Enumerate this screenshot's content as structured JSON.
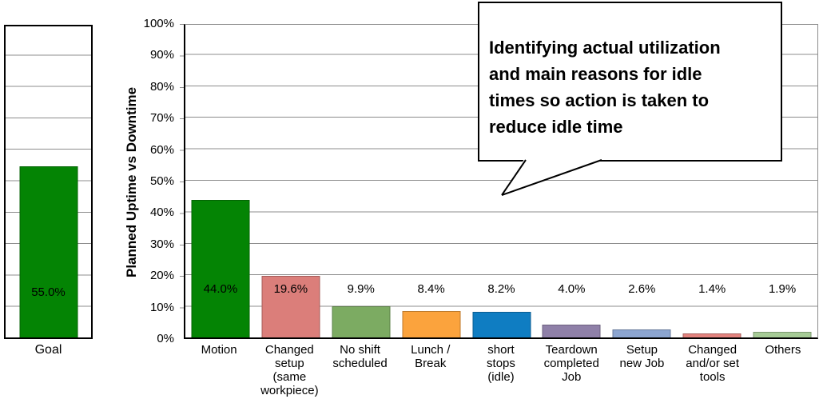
{
  "goal_chart": {
    "category_label": "Goal",
    "value": 55.0,
    "value_label": "55.0%",
    "color": "#048404"
  },
  "main_chart": {
    "y_axis_title": "Planned Uptime vs Downtime",
    "y_ticks": [
      "100%",
      "90%",
      "80%",
      "70%",
      "60%",
      "50%",
      "40%",
      "30%",
      "20%",
      "10%",
      "0%"
    ],
    "bars": [
      {
        "label": "Motion",
        "value": 44.0,
        "value_label": "44.0%",
        "color": "#048404"
      },
      {
        "label": "Changed\nsetup\n(same\nworkpiece)",
        "value": 19.6,
        "value_label": "19.6%",
        "color": "#db7e7a"
      },
      {
        "label": "No shift\nscheduled",
        "value": 9.9,
        "value_label": "9.9%",
        "color": "#7cab62"
      },
      {
        "label": "Lunch /\nBreak",
        "value": 8.4,
        "value_label": "8.4%",
        "color": "#fba33d"
      },
      {
        "label": "short\nstops\n(idle)",
        "value": 8.2,
        "value_label": "8.2%",
        "color": "#0f7dc2"
      },
      {
        "label": "Teardown\ncompleted\nJob",
        "value": 4.0,
        "value_label": "4.0%",
        "color": "#8f80a8"
      },
      {
        "label": "Setup\nnew Job",
        "value": 2.6,
        "value_label": "2.6%",
        "color": "#8ca5d0"
      },
      {
        "label": "Changed\nand/or set\ntools",
        "value": 1.4,
        "value_label": "1.4%",
        "color": "#e2837e"
      },
      {
        "label": "Others",
        "value": 1.9,
        "value_label": "1.9%",
        "color": "#a6cb96"
      }
    ]
  },
  "callout": {
    "text": "Identifying actual utilization\nand main reasons for idle\ntimes so action is taken to\nreduce idle time"
  },
  "chart_data": [
    {
      "type": "bar",
      "title": "",
      "categories": [
        "Goal"
      ],
      "values": [
        55.0
      ],
      "data_labels": [
        "55.0%"
      ],
      "bar_colors": [
        "#048404"
      ],
      "xlabel": "",
      "ylabel": "",
      "ylim": [
        0,
        100
      ],
      "ytick_step": 10,
      "grid": true,
      "legend": false
    },
    {
      "type": "bar",
      "title": "",
      "categories": [
        "Motion",
        "Changed setup (same workpiece)",
        "No shift scheduled",
        "Lunch / Break",
        "short stops (idle)",
        "Teardown completed Job",
        "Setup new Job",
        "Changed and/or set tools",
        "Others"
      ],
      "values": [
        44.0,
        19.6,
        9.9,
        8.4,
        8.2,
        4.0,
        2.6,
        1.4,
        1.9
      ],
      "data_labels": [
        "44.0%",
        "19.6%",
        "9.9%",
        "8.4%",
        "8.2%",
        "4.0%",
        "2.6%",
        "1.4%",
        "1.9%"
      ],
      "bar_colors": [
        "#048404",
        "#db7e7a",
        "#7cab62",
        "#fba33d",
        "#0f7dc2",
        "#8f80a8",
        "#8ca5d0",
        "#e2837e",
        "#a6cb96"
      ],
      "xlabel": "",
      "ylabel": "Planned Uptime vs Downtime",
      "ylim": [
        0,
        100
      ],
      "ytick_step": 10,
      "grid": true,
      "legend": false,
      "annotation": "Identifying actual utilization and main reasons for idle times so action is taken to reduce idle time"
    }
  ]
}
